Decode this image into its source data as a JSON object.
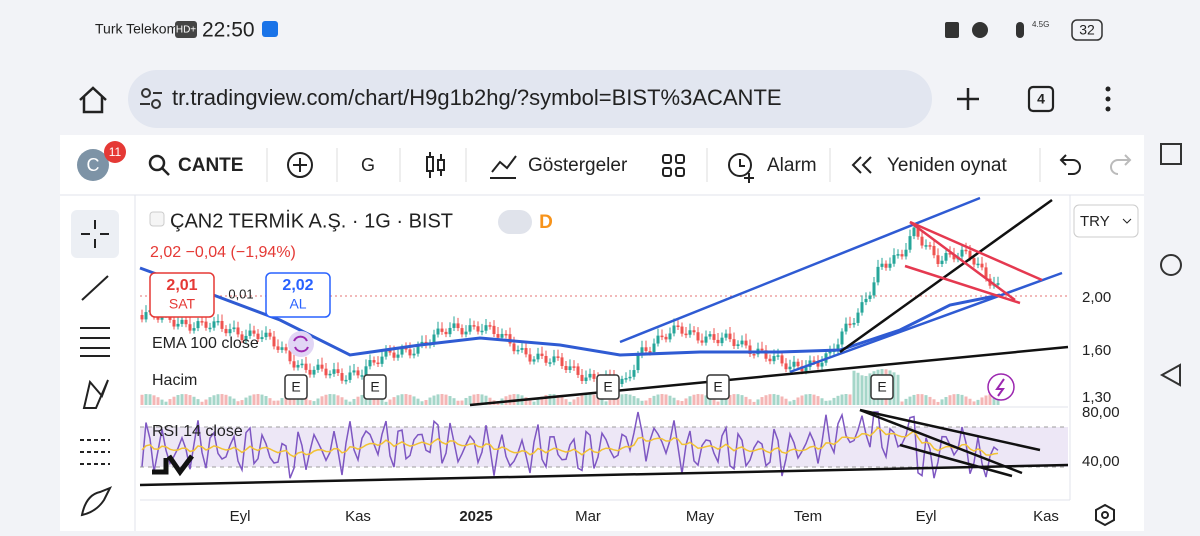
{
  "status_bar": {
    "carrier": "Turk Telekom",
    "network_badge": "HD+",
    "time": "22:50",
    "signal": "4.5G",
    "battery": "32"
  },
  "browser": {
    "url": "tr.tradingview.com/chart/H9g1b2hg/?symbol=BIST%3ACANTE",
    "tabs": "4"
  },
  "toolbar": {
    "avatar": "C",
    "notifications": "11",
    "symbol": "CANTE",
    "interval": "G",
    "indicators": "Göstergeler",
    "alarm": "Alarm",
    "replay": "Yeniden oynat"
  },
  "legend": {
    "title": "ÇAN2 TERMİK A.Ş. · 1G · BIST",
    "badge": "D",
    "quote": "2,02 −0,04 (−1,94%)",
    "sell_price": "2,01",
    "sell": "SAT",
    "spread": "0,01",
    "buy_price": "2,02",
    "buy": "AL",
    "ema": "EMA 100 close",
    "volume": "Hacim",
    "rsi": "RSI 14 close",
    "event": "E"
  },
  "price_axis": {
    "currency": "TRY",
    "labels": [
      "2,00",
      "1,60",
      "1,30",
      "80,00",
      "40,00"
    ]
  },
  "time_axis": [
    "Eyl",
    "Kas",
    "2025",
    "Mar",
    "May",
    "Tem",
    "Eyl",
    "Kas"
  ]
}
